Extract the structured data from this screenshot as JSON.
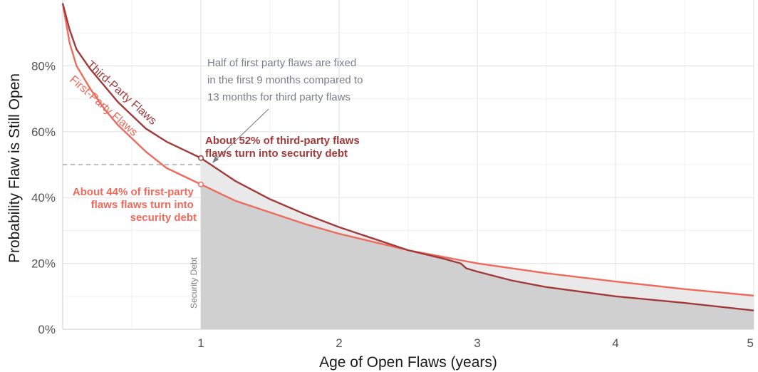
{
  "chart_data": {
    "type": "line",
    "xlabel": "Age of Open Flaws (years)",
    "ylabel": "Probability Flaw is Still Open",
    "xlim": [
      0,
      5
    ],
    "ylim": [
      0,
      1
    ],
    "x_ticks": [
      "1",
      "2",
      "3",
      "4",
      "5"
    ],
    "y_ticks": [
      "0%",
      "20%",
      "40%",
      "60%",
      "80%"
    ],
    "grid": true,
    "series": [
      {
        "name": "Third-Party Flaws",
        "color": "#a13a3a",
        "x": [
          0,
          0.05,
          0.1,
          0.2,
          0.3,
          0.4,
          0.5,
          0.6,
          0.75,
          1.0,
          1.25,
          1.5,
          1.75,
          2.0,
          2.25,
          2.5,
          2.75,
          2.88,
          2.92,
          3.0,
          3.25,
          3.5,
          4.0,
          4.5,
          5.0
        ],
        "y": [
          0.99,
          0.91,
          0.85,
          0.79,
          0.74,
          0.69,
          0.65,
          0.61,
          0.57,
          0.52,
          0.45,
          0.395,
          0.35,
          0.31,
          0.275,
          0.24,
          0.215,
          0.2,
          0.185,
          0.175,
          0.148,
          0.128,
          0.1,
          0.08,
          0.057
        ]
      },
      {
        "name": "First-Party Flaws",
        "color": "#ee6a5c",
        "x": [
          0,
          0.05,
          0.1,
          0.2,
          0.3,
          0.4,
          0.5,
          0.6,
          0.75,
          1.0,
          1.25,
          1.5,
          1.75,
          2.0,
          2.25,
          2.5,
          3.0,
          3.5,
          4.0,
          4.5,
          5.0
        ],
        "y": [
          0.99,
          0.87,
          0.8,
          0.73,
          0.67,
          0.62,
          0.58,
          0.54,
          0.49,
          0.44,
          0.39,
          0.355,
          0.32,
          0.29,
          0.265,
          0.24,
          0.2,
          0.17,
          0.145,
          0.122,
          0.102
        ]
      }
    ],
    "reference_line": {
      "y": 0.5,
      "style": "dashed"
    },
    "shaded_region_label": "Security Debt",
    "markers": [
      {
        "series": "Third-Party Flaws",
        "x": 1,
        "y": 0.52
      },
      {
        "series": "First-Party Flaws",
        "x": 1,
        "y": 0.44
      }
    ],
    "annotations": {
      "note": [
        "Half of first party flaws are fixed",
        "in the first 9 months compared to",
        "13 months for third party flaws"
      ],
      "third_party": [
        "About 52% of third-party flaws",
        "flaws turn into security debt"
      ],
      "first_party": [
        "About 44% of first-party",
        "flaws flaws turn into",
        "security debt"
      ]
    },
    "colors": {
      "grid": "#e5e5e5",
      "shade_dark": "#d0d0d0",
      "shade_light": "#e9e9e9",
      "reference": "#999999",
      "note_arrow": "#7b7f8a"
    }
  }
}
